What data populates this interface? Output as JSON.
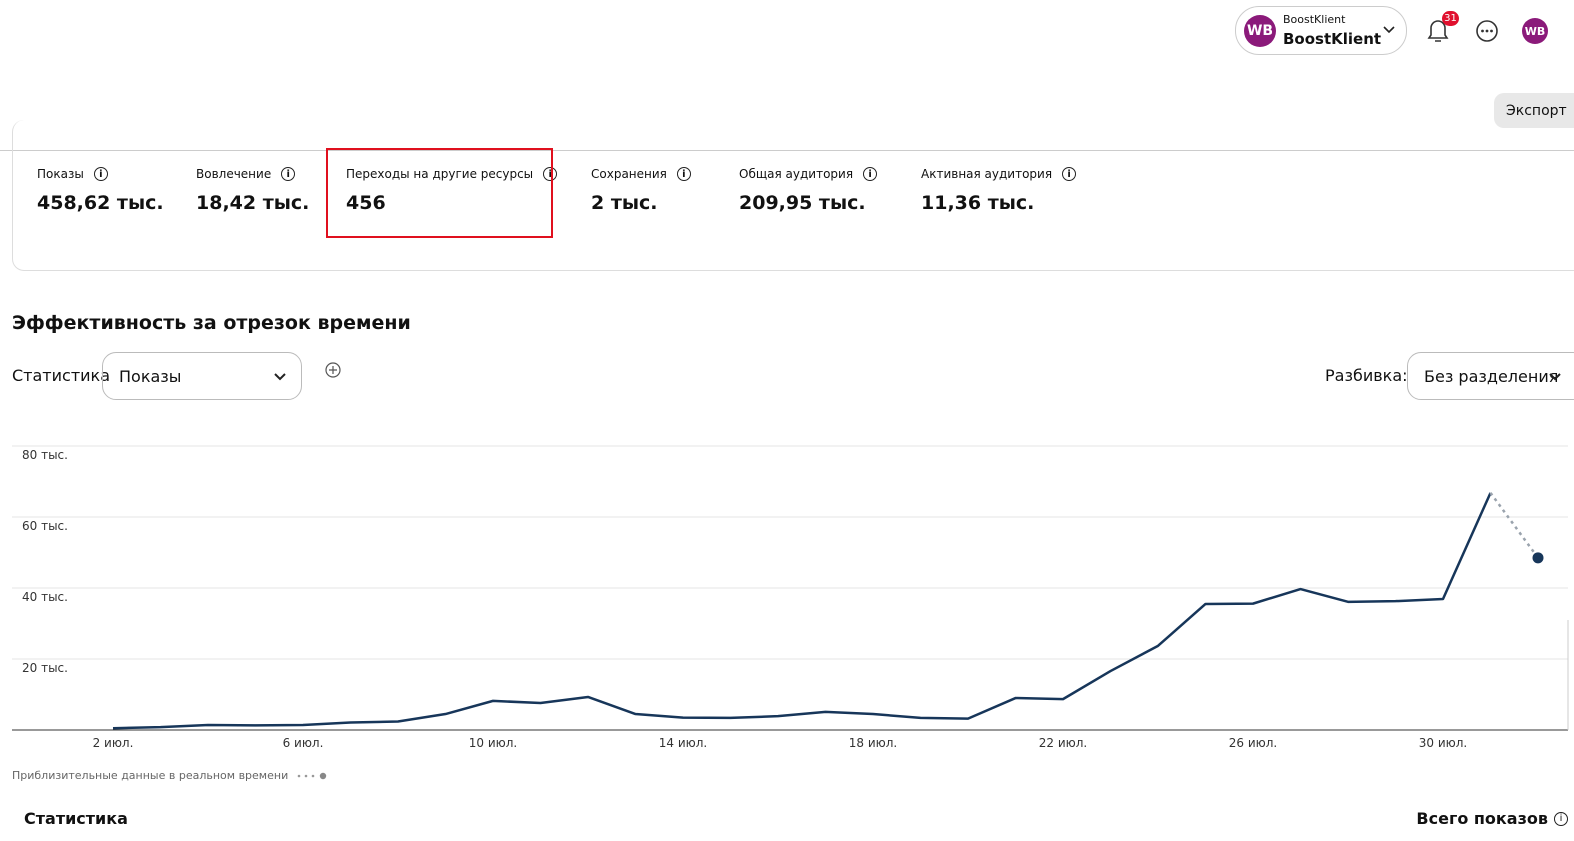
{
  "header": {
    "account_caption": "BoostKlient",
    "account_name": "BoostKlient",
    "account_avatar": "WB",
    "notifications": "31",
    "user_avatar": "WB"
  },
  "export": "Экспорт",
  "metrics": [
    {
      "label": "Показы",
      "value": "458,62 тыс."
    },
    {
      "label": "Вовлечение",
      "value": "18,42 тыс."
    },
    {
      "label": "Переходы на другие ресурсы",
      "value": "456"
    },
    {
      "label": "Сохранения",
      "value": "2 тыс."
    },
    {
      "label": "Общая аудитория",
      "value": "209,95 тыс."
    },
    {
      "label": "Активная аудитория",
      "value": "11,36 тыс."
    }
  ],
  "section_title": "Эффективность за отрезок времени",
  "controls": {
    "stat_label": "Статистика",
    "stat_select": "Показы",
    "breakdown_label": "Разбивка:",
    "breakdown_select": "Без разделения"
  },
  "chart_data": {
    "type": "line",
    "categories": [
      "2 июл.",
      null,
      null,
      null,
      "6 июл.",
      null,
      null,
      null,
      "10 июл.",
      null,
      null,
      null,
      "14 июл.",
      null,
      null,
      null,
      "18 июл.",
      null,
      null,
      null,
      "22 июл.",
      null,
      null,
      null,
      "26 июл.",
      null,
      null,
      null,
      "30 июл.",
      null,
      null
    ],
    "series": [
      {
        "name": "Показы",
        "color": "#17365a",
        "line_style": "solid",
        "values": [
          500,
          800,
          1400,
          1300,
          1400,
          2100,
          2400,
          4500,
          8200,
          7600,
          9300,
          4500,
          3500,
          3400,
          3900,
          5100,
          4500,
          3400,
          3200,
          9000,
          8700,
          16600,
          23700,
          35500,
          35600,
          39700,
          36100,
          36300,
          36900,
          66800,
          null
        ]
      },
      {
        "name": "Приблизительные данные в реальном времени",
        "color": "#9aa3ad",
        "line_style": "dotted",
        "values": [
          null,
          null,
          null,
          null,
          null,
          null,
          null,
          null,
          null,
          null,
          null,
          null,
          null,
          null,
          null,
          null,
          null,
          null,
          null,
          null,
          null,
          null,
          null,
          null,
          null,
          null,
          null,
          null,
          null,
          66800,
          48500
        ]
      }
    ],
    "ylim": [
      0,
      80000
    ],
    "yticks": [
      {
        "value": 20000,
        "label": "20 тыс."
      },
      {
        "value": 40000,
        "label": "40 тыс."
      },
      {
        "value": 60000,
        "label": "60 тыс."
      },
      {
        "value": 80000,
        "label": "80 тыс."
      }
    ],
    "grid": true
  },
  "footer": {
    "stats_title": "Статистика",
    "total_label": "Всего показов"
  }
}
